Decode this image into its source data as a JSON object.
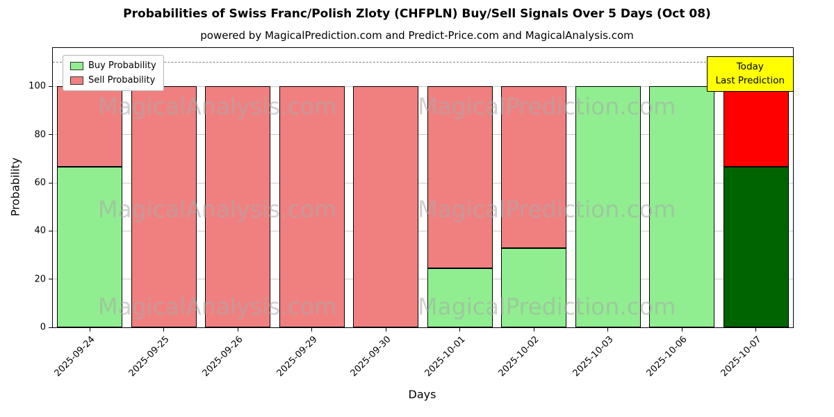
{
  "chart_data": {
    "type": "bar",
    "stacked": true,
    "title": "Probabilities of Swiss Franc/Polish Zloty (CHFPLN) Buy/Sell Signals Over 5 Days (Oct 08)",
    "subtitle": "powered by MagicalPrediction.com and Predict-Price.com and MagicalAnalysis.com",
    "xlabel": "Days",
    "ylabel": "Probability",
    "categories": [
      "2025-09-24",
      "2025-09-25",
      "2025-09-26",
      "2025-09-29",
      "2025-09-30",
      "2025-10-01",
      "2025-10-02",
      "2025-10-03",
      "2025-10-06",
      "2025-10-07"
    ],
    "series": [
      {
        "name": "Buy Probability",
        "color": "#90EE90",
        "values": [
          66.67,
          0,
          0,
          0,
          0,
          24.5,
          33,
          100,
          100,
          66.67
        ]
      },
      {
        "name": "Sell Probability",
        "color": "#F08080",
        "values": [
          33.33,
          100,
          100,
          100,
          100,
          75.5,
          67,
          0,
          0,
          33.33
        ]
      }
    ],
    "today_index": 9,
    "today_colors": {
      "buy": "#006400",
      "sell": "#FF0000"
    },
    "yticks": [
      0,
      20,
      40,
      60,
      80,
      100
    ],
    "ylim": [
      0,
      116
    ],
    "dashed_line_y": 110,
    "grid": "horizontal",
    "legend_position": "upper left",
    "bar_edge_color": "#000000",
    "annotation": {
      "line1": "Today",
      "line2": "Last Prediction",
      "bg": "#FFFF00"
    },
    "watermarks": {
      "texts": [
        "MagicalAnalysis.com",
        "MagicalPrediction.com"
      ],
      "color": "rgba(170,170,170,0.55)"
    }
  }
}
